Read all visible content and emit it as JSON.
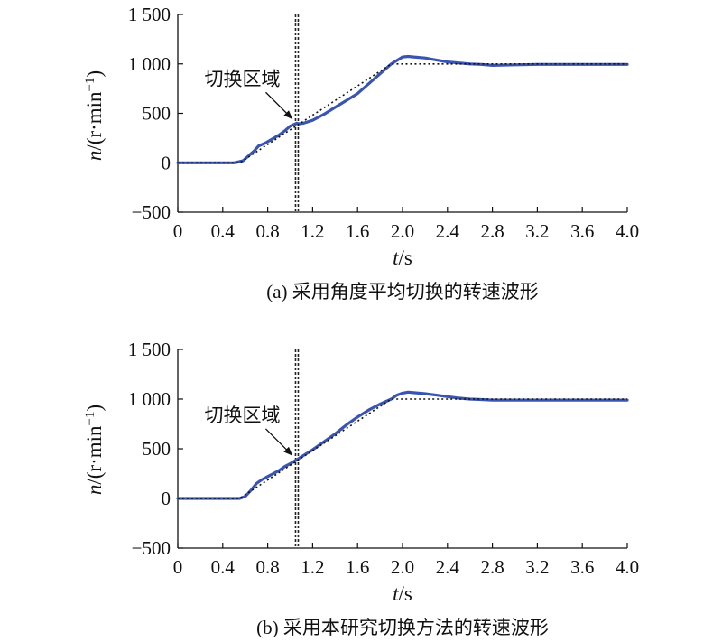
{
  "chart_data": [
    {
      "type": "line",
      "panel": "a",
      "caption": "(a) 采用角度平均切换的转速波形",
      "xlabel_var": "t",
      "xlabel_unit": "/s",
      "ylabel_var": "n",
      "ylabel_unit": "/(r·min",
      "ylabel_exp": "−1",
      "ylabel_close": ")",
      "xlim": [
        0,
        4.0
      ],
      "ylim": [
        -500,
        1500
      ],
      "xticks": [
        0,
        0.4,
        0.8,
        1.2,
        1.6,
        2.0,
        2.4,
        2.8,
        3.2,
        3.6,
        4.0
      ],
      "xtick_labels": [
        "0",
        "0.4",
        "0.8",
        "1.2",
        "1.6",
        "2.0",
        "2.4",
        "2.8",
        "3.2",
        "3.6",
        "4.0"
      ],
      "yticks": [
        -500,
        0,
        500,
        1000,
        1500
      ],
      "ytick_labels": [
        "−500",
        "0",
        "500",
        "1 000",
        "1 500"
      ],
      "switch_line_x": 1.06,
      "annotation": {
        "text": "切换区域",
        "x": 1.04,
        "y": 420
      },
      "series": [
        {
          "color": "#3a55b0",
          "style": "solid",
          "x": [
            0,
            0.5,
            0.58,
            0.62,
            0.68,
            0.72,
            0.78,
            0.84,
            0.9,
            0.96,
            1.0,
            1.04,
            1.06,
            1.08,
            1.12,
            1.2,
            1.3,
            1.4,
            1.5,
            1.6,
            1.7,
            1.8,
            1.9,
            2.0,
            2.05,
            2.1,
            2.2,
            2.3,
            2.4,
            2.5,
            2.6,
            2.7,
            2.8,
            3.0,
            3.2,
            3.6,
            4.0
          ],
          "y": [
            0,
            0,
            20,
            60,
            120,
            170,
            200,
            240,
            280,
            330,
            370,
            390,
            400,
            395,
            400,
            430,
            490,
            560,
            630,
            700,
            800,
            900,
            1000,
            1070,
            1075,
            1070,
            1060,
            1040,
            1020,
            1010,
            1000,
            995,
            985,
            990,
            995,
            995,
            995
          ]
        },
        {
          "color": "#111111",
          "style": "dotted",
          "x": [
            0,
            0.55,
            1.9,
            4.0
          ],
          "y": [
            0,
            0,
            1000,
            1000
          ]
        }
      ]
    },
    {
      "type": "line",
      "panel": "b",
      "caption": "(b) 采用本研究切换方法的转速波形",
      "xlabel_var": "t",
      "xlabel_unit": "/s",
      "ylabel_var": "n",
      "ylabel_unit": "/(r·min",
      "ylabel_exp": "−1",
      "ylabel_close": ")",
      "xlim": [
        0,
        4.0
      ],
      "ylim": [
        -500,
        1500
      ],
      "xticks": [
        0,
        0.4,
        0.8,
        1.2,
        1.6,
        2.0,
        2.4,
        2.8,
        3.2,
        3.6,
        4.0
      ],
      "xtick_labels": [
        "0",
        "0.4",
        "0.8",
        "1.2",
        "1.6",
        "2.0",
        "2.4",
        "2.8",
        "3.2",
        "3.6",
        "4.0"
      ],
      "yticks": [
        -500,
        0,
        500,
        1000,
        1500
      ],
      "ytick_labels": [
        "−500",
        "0",
        "500",
        "1 000",
        "1 500"
      ],
      "switch_line_x": 1.06,
      "annotation": {
        "text": "切换区域",
        "x": 1.04,
        "y": 410
      },
      "series": [
        {
          "color": "#3a55b0",
          "style": "solid",
          "x": [
            0,
            0.55,
            0.6,
            0.65,
            0.7,
            0.75,
            0.8,
            0.85,
            0.9,
            0.95,
            1.0,
            1.06,
            1.1,
            1.2,
            1.3,
            1.4,
            1.5,
            1.6,
            1.7,
            1.8,
            1.9,
            1.95,
            2.0,
            2.05,
            2.1,
            2.2,
            2.3,
            2.4,
            2.5,
            2.6,
            2.7,
            2.8,
            3.0,
            3.4,
            4.0
          ],
          "y": [
            0,
            0,
            20,
            80,
            150,
            190,
            220,
            250,
            280,
            320,
            350,
            390,
            420,
            490,
            570,
            650,
            740,
            820,
            890,
            950,
            1000,
            1040,
            1060,
            1070,
            1065,
            1055,
            1040,
            1025,
            1010,
            1000,
            995,
            990,
            990,
            990,
            990
          ]
        },
        {
          "color": "#111111",
          "style": "dotted",
          "x": [
            0,
            0.55,
            1.9,
            4.0
          ],
          "y": [
            0,
            0,
            1000,
            1000
          ]
        }
      ]
    }
  ]
}
